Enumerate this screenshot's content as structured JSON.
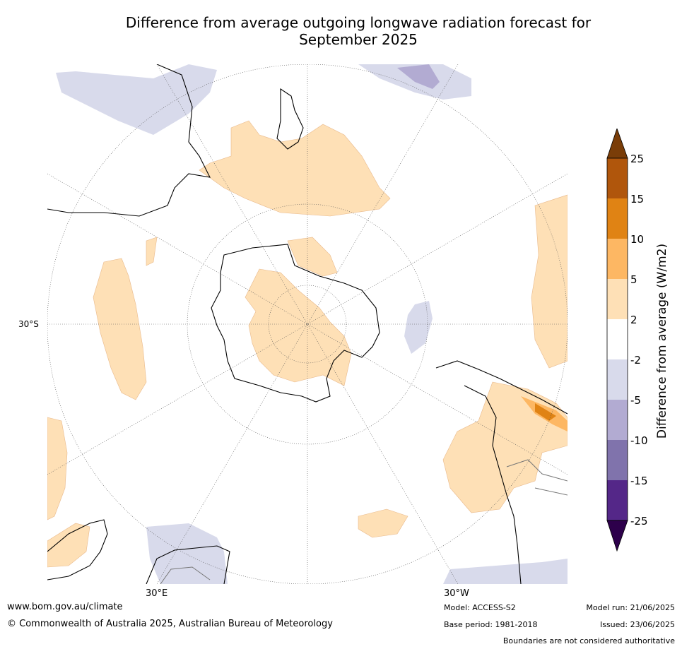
{
  "title_line1": "Difference from average outgoing longwave radiation forecast for",
  "title_line2": "September 2025",
  "axis": {
    "lat_label": "30°S",
    "lon_label_left": "30°E",
    "lon_label_right": "30°W"
  },
  "colorbar": {
    "label": "Difference from average (W/m2)",
    "ticks": [
      "25",
      "15",
      "10",
      "5",
      "2",
      "-2",
      "-5",
      "-10",
      "-15",
      "-25"
    ],
    "colors": {
      "over": "#7a3d08",
      "15_25": "#b0560c",
      "10_15": "#e08314",
      "5_10": "#fdb763",
      "2_5": "#fee0b6",
      "m2_2": "#ffffff",
      "m5_m2": "#d8daeb",
      "m10_m5": "#b2abd2",
      "m15_m10": "#8073ac",
      "m25_m15": "#542788",
      "under": "#2d004b"
    }
  },
  "footer": {
    "website": "www.bom.gov.au/climate",
    "copyright": "© Commonwealth of Australia 2025, Australian Bureau of Meteorology",
    "model": "Model: ACCESS-S2",
    "base_period": "Base period: 1981-2018",
    "model_run": "Model run: 21/06/2025",
    "issued": "Issued: 23/06/2025",
    "disclaimer": "Boundaries are not considered authoritative"
  }
}
